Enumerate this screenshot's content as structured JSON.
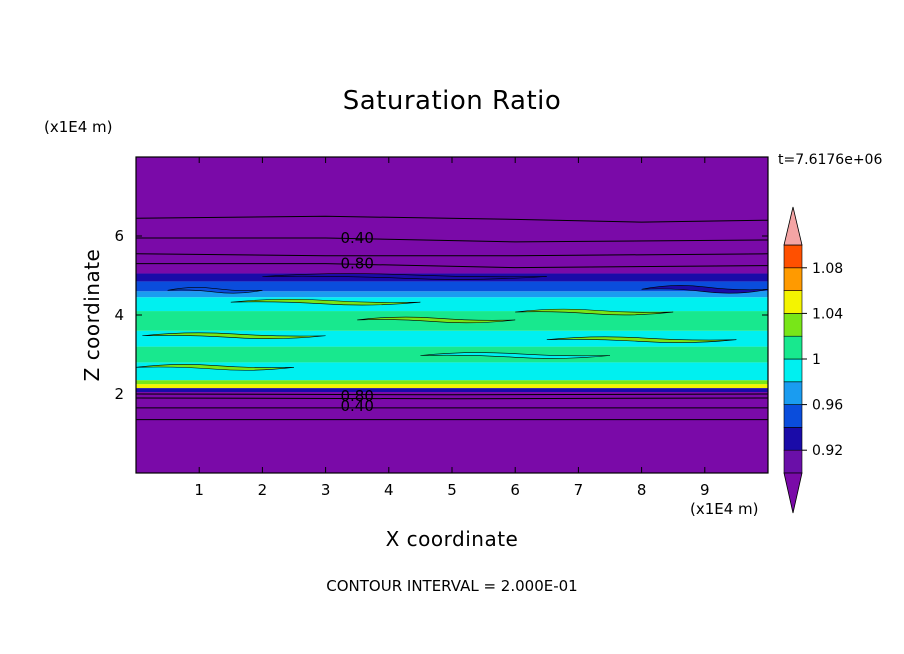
{
  "chart_data": {
    "type": "heatmap",
    "title": "Saturation Ratio",
    "xlabel": "X coordinate",
    "ylabel": "Z coordinate",
    "x_units": "(x1E4 m)",
    "y_units": "(x1E4 m)",
    "xlim": [
      0,
      10
    ],
    "ylim": [
      0,
      8
    ],
    "x_ticks": [
      1,
      2,
      3,
      4,
      5,
      6,
      7,
      8,
      9
    ],
    "y_ticks": [
      2,
      4,
      6
    ],
    "time_label": "t=7.6176e+06",
    "footnote": "CONTOUR INTERVAL = 2.000E-01",
    "contour_levels": [
      0.4,
      0.8
    ],
    "contour_labels": [
      {
        "text": "0.40",
        "x": 3.5,
        "z": 5.95
      },
      {
        "text": "0.80",
        "x": 3.5,
        "z": 5.3
      },
      {
        "text": "0.80",
        "x": 3.5,
        "z": 1.95
      },
      {
        "text": "0.40",
        "x": 3.5,
        "z": 1.7
      }
    ],
    "colorbar": {
      "levels": [
        0.9,
        0.92,
        0.94,
        0.96,
        0.98,
        1.0,
        1.02,
        1.04,
        1.06,
        1.08,
        1.1
      ],
      "labeled_ticks": [
        {
          "label": "0.92",
          "value": 0.92
        },
        {
          "label": "0.96",
          "value": 0.96
        },
        {
          "label": "1",
          "value": 1.0
        },
        {
          "label": "1.04",
          "value": 1.04
        },
        {
          "label": "1.08",
          "value": 1.08
        }
      ],
      "colors": [
        "#6a0fa8",
        "#1a0ba8",
        "#0a4ddc",
        "#1a9cf0",
        "#00f0f0",
        "#18e88e",
        "#78e618",
        "#f4f400",
        "#ff9a00",
        "#ff5000",
        "#f02020"
      ],
      "under_color": "#7a0aa8",
      "over_color": "#f4a4a4"
    },
    "bands": [
      {
        "z0": 0.0,
        "z1": 2.05,
        "value": 0.5,
        "color": "#7a0aa8"
      },
      {
        "z0": 2.05,
        "z1": 2.15,
        "value": 0.93,
        "color": "#1a0ba8"
      },
      {
        "z0": 2.15,
        "z1": 2.25,
        "value": 1.04,
        "color": "#f4f400"
      },
      {
        "z0": 2.25,
        "z1": 2.35,
        "value": 1.02,
        "color": "#78e618"
      },
      {
        "z0": 2.35,
        "z1": 2.8,
        "value": 0.98,
        "color": "#00f0f0"
      },
      {
        "z0": 2.8,
        "z1": 3.2,
        "value": 1.0,
        "color": "#18e88e"
      },
      {
        "z0": 3.2,
        "z1": 3.6,
        "value": 0.98,
        "color": "#00f0f0"
      },
      {
        "z0": 3.6,
        "z1": 4.1,
        "value": 1.0,
        "color": "#18e88e"
      },
      {
        "z0": 4.1,
        "z1": 4.45,
        "value": 0.98,
        "color": "#00f0f0"
      },
      {
        "z0": 4.45,
        "z1": 4.6,
        "value": 0.96,
        "color": "#1a9cf0"
      },
      {
        "z0": 4.6,
        "z1": 4.85,
        "value": 0.95,
        "color": "#0a4ddc"
      },
      {
        "z0": 4.85,
        "z1": 5.05,
        "value": 0.92,
        "color": "#1a0ba8"
      },
      {
        "z0": 5.05,
        "z1": 8.0,
        "value": 0.5,
        "color": "#7a0aa8"
      }
    ],
    "patches": [
      {
        "x0": 0.1,
        "x1": 3.0,
        "z0": 3.4,
        "z1": 3.55,
        "color": "#78e618"
      },
      {
        "x0": 3.5,
        "x1": 6.0,
        "z0": 3.8,
        "z1": 3.95,
        "color": "#78e618"
      },
      {
        "x0": 6.5,
        "x1": 9.5,
        "z0": 3.3,
        "z1": 3.45,
        "color": "#78e618"
      },
      {
        "x0": 1.5,
        "x1": 4.5,
        "z0": 4.25,
        "z1": 4.4,
        "color": "#78e618"
      },
      {
        "x0": 6.0,
        "x1": 8.5,
        "z0": 4.0,
        "z1": 4.15,
        "color": "#78e618"
      },
      {
        "x0": 0.0,
        "x1": 2.5,
        "z0": 2.6,
        "z1": 2.75,
        "color": "#78e618"
      },
      {
        "x0": 4.5,
        "x1": 7.5,
        "z0": 2.9,
        "z1": 3.05,
        "color": "#00f0f0"
      },
      {
        "x0": 0.5,
        "x1": 2.0,
        "z0": 4.55,
        "z1": 4.7,
        "color": "#0a4ddc"
      },
      {
        "x0": 8.0,
        "x1": 10.0,
        "z0": 4.55,
        "z1": 4.75,
        "color": "#1a0ba8"
      },
      {
        "x0": 2.0,
        "x1": 6.5,
        "z0": 4.9,
        "z1": 5.05,
        "color": "#1a0ba8"
      }
    ],
    "contour_lines": [
      {
        "points": [
          [
            0,
            6.45
          ],
          [
            3,
            6.5
          ],
          [
            6,
            6.42
          ],
          [
            8,
            6.35
          ],
          [
            10,
            6.4
          ]
        ]
      },
      {
        "points": [
          [
            0,
            5.95
          ],
          [
            3,
            5.95
          ],
          [
            6,
            5.85
          ],
          [
            10,
            5.9
          ]
        ]
      },
      {
        "points": [
          [
            0,
            5.55
          ],
          [
            3,
            5.5
          ],
          [
            6,
            5.5
          ],
          [
            10,
            5.55
          ]
        ]
      },
      {
        "points": [
          [
            0,
            5.3
          ],
          [
            3,
            5.3
          ],
          [
            6,
            5.2
          ],
          [
            10,
            5.25
          ]
        ]
      },
      {
        "points": [
          [
            0,
            2.0
          ],
          [
            5,
            1.98
          ],
          [
            10,
            2.0
          ]
        ]
      },
      {
        "points": [
          [
            0,
            1.9
          ],
          [
            5,
            1.88
          ],
          [
            10,
            1.9
          ]
        ]
      },
      {
        "points": [
          [
            0,
            1.65
          ],
          [
            5,
            1.65
          ],
          [
            10,
            1.65
          ]
        ]
      },
      {
        "points": [
          [
            0,
            1.35
          ],
          [
            10,
            1.35
          ]
        ]
      }
    ]
  }
}
